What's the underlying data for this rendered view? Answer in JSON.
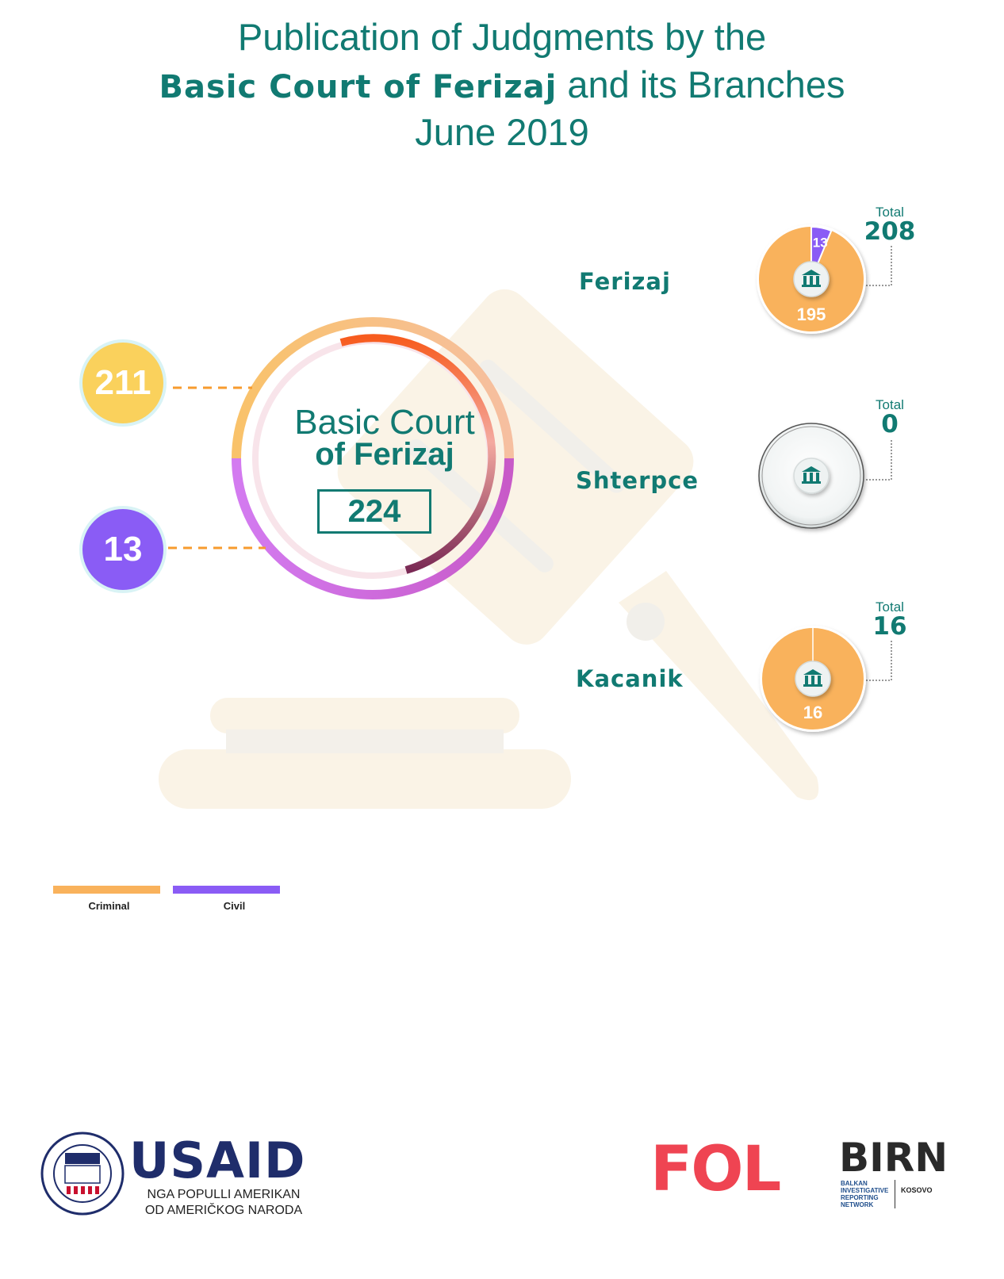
{
  "header": {
    "line1": "Publication of Judgments by the",
    "line2_bold": "Basic Court of Ferizaj",
    "line2_rest": " and its Branches",
    "line3": "June 2019"
  },
  "main_court": {
    "name_line1": "Basic Court",
    "name_line2": "of Ferizaj",
    "total": "224",
    "criminal": "211",
    "civil": "13"
  },
  "branches": [
    {
      "name": "Ferizaj",
      "total_label": "Total",
      "total": "208",
      "criminal": "195",
      "civil": "13"
    },
    {
      "name": "Shterpce",
      "total_label": "Total",
      "total": "0",
      "criminal": "",
      "civil": ""
    },
    {
      "name": "Kacanik",
      "total_label": "Total",
      "total": "16",
      "criminal": "16",
      "civil": ""
    }
  ],
  "legend": {
    "criminal": "Criminal",
    "civil": "Civil"
  },
  "logos": {
    "usaid": "USAID",
    "usaid_sub1": "NGA POPULLI AMERIKAN",
    "usaid_sub2": "OD AMERIČKOG NARODA",
    "fol": "FOL",
    "birn": "BIRN",
    "birn_sub": "BALKAN INVESTIGATIVE REPORTING NETWORK",
    "birn_country": "KOSOVO"
  },
  "colors": {
    "teal": "#117a72",
    "criminal": "#f9b25c",
    "civil": "#8a5cf5",
    "criminal_bubble": "#fad15c",
    "civil_bubble": "#8a5cf5"
  },
  "chart_data": [
    {
      "type": "pie",
      "title": "Basic Court of Ferizaj",
      "categories": [
        "Criminal",
        "Civil"
      ],
      "values": [
        211,
        13
      ],
      "total": 224
    },
    {
      "type": "pie",
      "title": "Ferizaj",
      "categories": [
        "Criminal",
        "Civil"
      ],
      "values": [
        195,
        13
      ],
      "total": 208
    },
    {
      "type": "pie",
      "title": "Shterpce",
      "categories": [
        "Criminal",
        "Civil"
      ],
      "values": [
        0,
        0
      ],
      "total": 0
    },
    {
      "type": "pie",
      "title": "Kacanik",
      "categories": [
        "Criminal",
        "Civil"
      ],
      "values": [
        16,
        0
      ],
      "total": 16
    }
  ]
}
